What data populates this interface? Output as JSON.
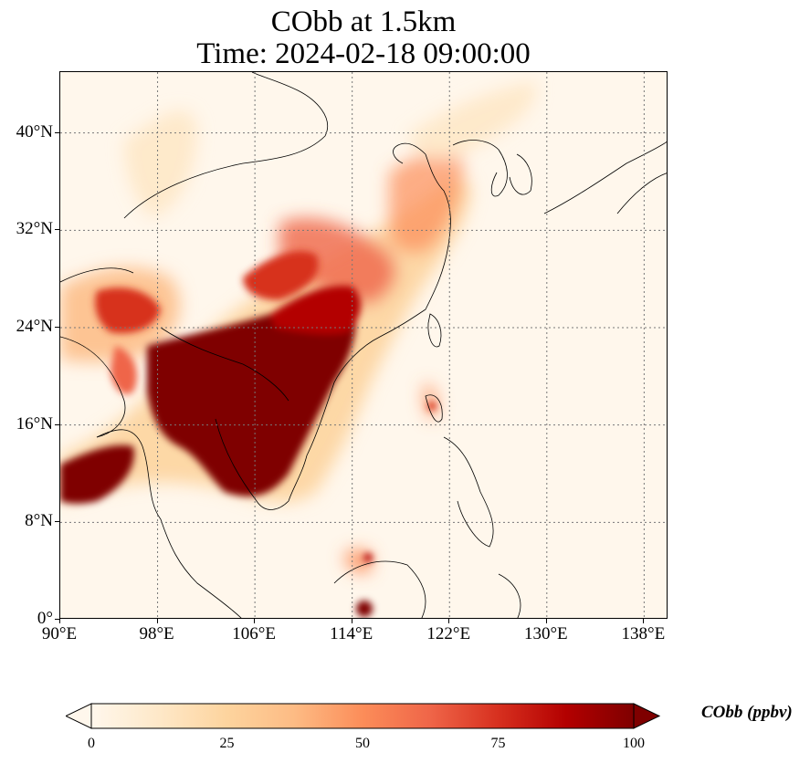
{
  "title": {
    "line1": "CObb at 1.5km",
    "line2": "Time: 2024-02-18 09:00:00"
  },
  "map": {
    "projection": "PlateCarree",
    "lon_range": [
      90,
      140
    ],
    "lat_range": [
      0,
      45
    ],
    "gridlines": true,
    "grid_style": "dotted",
    "x_ticks": [
      "90°E",
      "98°E",
      "106°E",
      "114°E",
      "122°E",
      "130°E",
      "138°E"
    ],
    "y_ticks": [
      "0°",
      "8°N",
      "16°N",
      "24°N",
      "32°N",
      "40°N"
    ],
    "x_tick_values": [
      90,
      98,
      106,
      114,
      122,
      130,
      138
    ],
    "y_tick_values": [
      0,
      8,
      16,
      24,
      32,
      40
    ],
    "field": "COBB concentration at 1.5 km",
    "high_regions": [
      {
        "lon": [
          101,
          113
        ],
        "lat": [
          12,
          24
        ],
        "level": 100
      },
      {
        "lon": [
          90,
          97
        ],
        "lat": [
          9,
          13
        ],
        "level": 90
      },
      {
        "lon": [
          104,
          117
        ],
        "lat": [
          24,
          32
        ],
        "level": 75
      },
      {
        "lon": [
          112,
          121
        ],
        "lat": [
          28,
          35
        ],
        "level": 45
      },
      {
        "lon": [
          90,
          99
        ],
        "lat": [
          24,
          28
        ],
        "level": 60
      },
      {
        "lon": [
          119.5,
          121
        ],
        "lat": [
          17,
          19
        ],
        "level": 60
      },
      {
        "lon": [
          114.5,
          115.5
        ],
        "lat": [
          4.5,
          5.5
        ],
        "level": 80
      },
      {
        "lon": [
          115,
          116.5
        ],
        "lat": [
          0,
          1
        ],
        "level": 90
      }
    ]
  },
  "colorbar": {
    "label": "CObb (ppbv)",
    "ticks": [
      "0",
      "25",
      "50",
      "75",
      "100"
    ],
    "tick_values": [
      0,
      25,
      50,
      75,
      100
    ],
    "range": [
      0,
      100
    ],
    "extend": "both",
    "colormap": "OrRd",
    "colors": [
      "#fff7ec",
      "#fee8c8",
      "#fdd49e",
      "#fdbb84",
      "#fc8d59",
      "#ef6548",
      "#d7301f",
      "#b30000",
      "#7f0000"
    ]
  }
}
